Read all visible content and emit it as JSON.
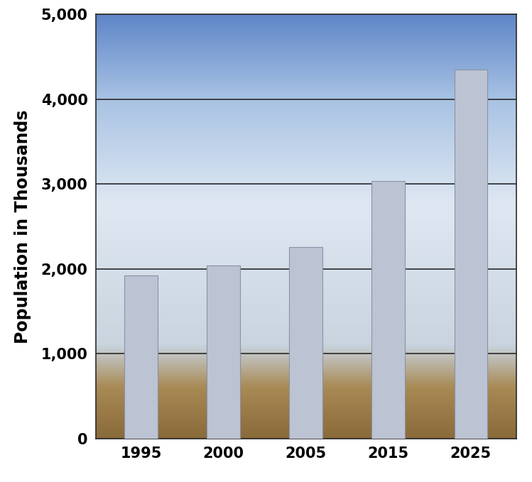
{
  "chart_data": {
    "type": "bar",
    "y_label": "Population in Thousands",
    "categories": [
      "1995",
      "2000",
      "2005",
      "2015",
      "2025"
    ],
    "values": [
      1920,
      2040,
      2260,
      3040,
      4350
    ],
    "color": "#bcc3d3",
    "ylim": [
      0,
      5000
    ],
    "yticks": [
      0,
      {
        "value": 1000,
        "label": "1,000"
      },
      {
        "value": 2000,
        "label": "2,000"
      },
      {
        "value": 3000,
        "label": "3,000"
      },
      {
        "value": 4000,
        "label": "4,000"
      },
      {
        "value": 5000,
        "label": "5,000"
      }
    ],
    "grid": true
  }
}
